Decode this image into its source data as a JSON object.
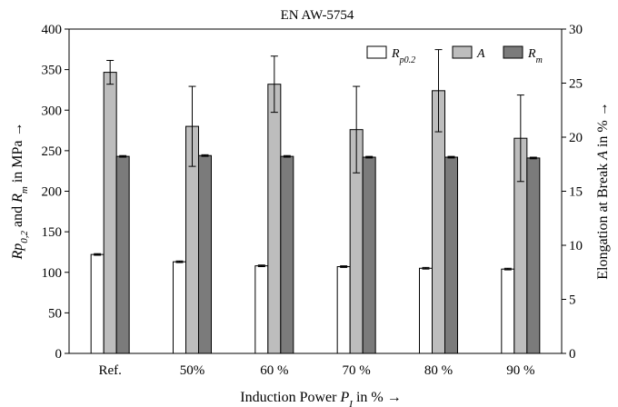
{
  "chart_data": {
    "type": "bar",
    "title": "EN AW-5754",
    "xlabel": "Induction Power P_I in % →",
    "xlabel_parts": {
      "pre": "Induction Power ",
      "P": "P",
      "sub": "I",
      "post": " in % →"
    },
    "ylabel_left_parts": {
      "a": "Rp",
      "a_sub": "0,2",
      "mid": " and ",
      "b": "R",
      "b_sub": "m",
      "post": " in MPa →"
    },
    "ylabel_right_parts": {
      "pre": "Elongation at Break ",
      "A": "A",
      "post": " in % →"
    },
    "categories": [
      "Ref.",
      "50%",
      "60 %",
      "70 %",
      "80 %",
      "90 %"
    ],
    "ylim_left": [
      0,
      400
    ],
    "yticks_left": [
      0,
      50,
      100,
      150,
      200,
      250,
      300,
      350,
      400
    ],
    "ylim_right": [
      0,
      30
    ],
    "yticks_right": [
      0,
      5,
      10,
      15,
      20,
      25,
      30
    ],
    "legend_position": "top-right",
    "grid": false,
    "series": [
      {
        "name": "Rp0.2",
        "legend_main": "R",
        "legend_sub": "p0.2",
        "axis": "left",
        "color": "#ffffff",
        "values": [
          122,
          113,
          108,
          107,
          105,
          104
        ],
        "errors": [
          1,
          1,
          1,
          1,
          1,
          1
        ]
      },
      {
        "name": "A",
        "legend_main": "A",
        "legend_sub": "",
        "axis": "right",
        "color": "#bdbdbd",
        "values": [
          26.0,
          21.0,
          24.9,
          20.7,
          24.3,
          19.9
        ],
        "errors": [
          1.1,
          3.7,
          2.6,
          4.0,
          3.8,
          4.0
        ]
      },
      {
        "name": "Rm",
        "legend_main": "R",
        "legend_sub": "m",
        "axis": "left",
        "color": "#7b7b7b",
        "values": [
          243,
          244,
          243,
          242,
          242,
          241
        ],
        "errors": [
          1,
          1,
          1,
          1,
          1,
          1
        ]
      }
    ]
  }
}
